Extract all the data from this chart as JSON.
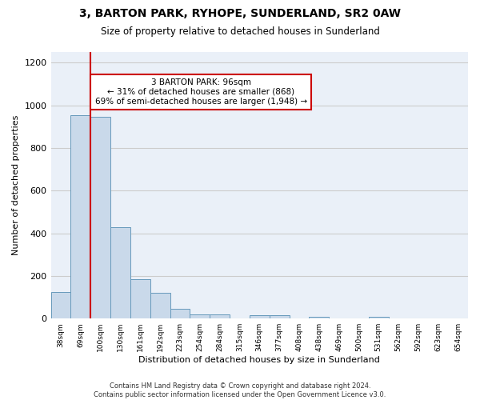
{
  "title": "3, BARTON PARK, RYHOPE, SUNDERLAND, SR2 0AW",
  "subtitle": "Size of property relative to detached houses in Sunderland",
  "xlabel": "Distribution of detached houses by size in Sunderland",
  "ylabel": "Number of detached properties",
  "bar_values": [
    125,
    955,
    945,
    430,
    185,
    120,
    45,
    20,
    20,
    0,
    15,
    15,
    0,
    10,
    0,
    0,
    10,
    0,
    0,
    0,
    0
  ],
  "bar_labels": [
    "38sqm",
    "69sqm",
    "100sqm",
    "130sqm",
    "161sqm",
    "192sqm",
    "223sqm",
    "254sqm",
    "284sqm",
    "315sqm",
    "346sqm",
    "377sqm",
    "408sqm",
    "438sqm",
    "469sqm",
    "500sqm",
    "531sqm",
    "562sqm",
    "592sqm",
    "623sqm",
    "654sqm"
  ],
  "bar_color": "#c9d9ea",
  "bar_edge_color": "#6699bb",
  "vline_color": "#cc0000",
  "annotation_text": "3 BARTON PARK: 96sqm\n← 31% of detached houses are smaller (868)\n69% of semi-detached houses are larger (1,948) →",
  "annotation_box_color": "#ffffff",
  "annotation_box_edge": "#cc0000",
  "ylim": [
    0,
    1250
  ],
  "yticks": [
    0,
    200,
    400,
    600,
    800,
    1000,
    1200
  ],
  "footer_line1": "Contains HM Land Registry data © Crown copyright and database right 2024.",
  "footer_line2": "Contains public sector information licensed under the Open Government Licence v3.0.",
  "bg_color": "#ffffff",
  "axes_bg_color": "#eaf0f8",
  "grid_color": "#cccccc"
}
